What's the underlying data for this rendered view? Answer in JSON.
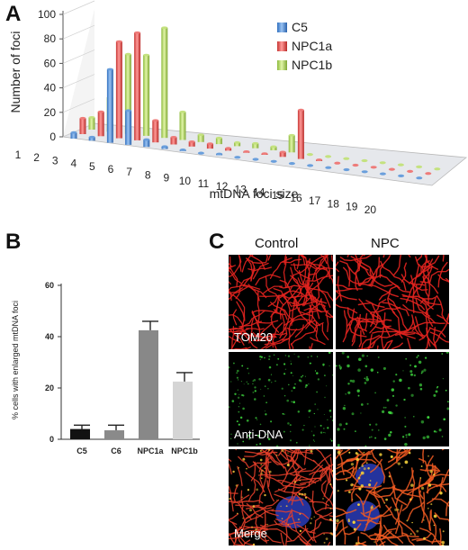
{
  "panels": {
    "a": {
      "label": "A"
    },
    "b": {
      "label": "B"
    },
    "c": {
      "label": "C"
    }
  },
  "chart_data": [
    {
      "panel": "A",
      "type": "bar",
      "categories": [
        "1",
        "2",
        "3",
        "4",
        "5",
        "6",
        "7",
        "8",
        "9",
        "10",
        "11",
        "12",
        "13",
        "14",
        "15",
        "16",
        "17",
        "18",
        "19",
        "20"
      ],
      "series": [
        {
          "name": "C5",
          "color": "#4f8fd6",
          "values": [
            5,
            3,
            60,
            28,
            6,
            2,
            1,
            0,
            1,
            0,
            0,
            0,
            0,
            0,
            0,
            0,
            0,
            0,
            0,
            0
          ]
        },
        {
          "name": "NPC1a",
          "color": "#e8504e",
          "values": [
            13,
            20,
            79,
            88,
            18,
            6,
            4,
            4,
            2,
            1,
            1,
            4,
            40,
            1,
            0,
            0,
            0,
            0,
            0,
            0
          ]
        },
        {
          "name": "NPC1b",
          "color": "#aed65a",
          "values": [
            10,
            28,
            65,
            66,
            90,
            23,
            6,
            5,
            3,
            4,
            3,
            14,
            0,
            0,
            0,
            0,
            0,
            0,
            0,
            0
          ]
        }
      ],
      "ylabel": "Number of foci",
      "xlabel": "mtDNA foci size",
      "ylim": [
        0,
        100
      ],
      "yticks": [
        "0",
        "20",
        "40",
        "60",
        "80",
        "100"
      ],
      "legend": "top-right"
    },
    {
      "panel": "B",
      "type": "bar",
      "categories": [
        "C5",
        "C6",
        "NPC1a",
        "NPC1b"
      ],
      "values": [
        4,
        3.5,
        42.5,
        22.5
      ],
      "errors": [
        1.5,
        2.0,
        3.5,
        3.5
      ],
      "colors": [
        "#111111",
        "#8a8a8a",
        "#888888",
        "#d5d5d5"
      ],
      "ylabel": "% cells with enlarged mtDNA foci",
      "ylim": [
        0,
        60
      ],
      "yticks": [
        "0",
        "20",
        "40",
        "60"
      ]
    }
  ],
  "panel_c": {
    "columns": [
      "Control",
      "NPC"
    ],
    "rows": [
      "TOM20",
      "Anti-DNA",
      "Merge"
    ]
  }
}
